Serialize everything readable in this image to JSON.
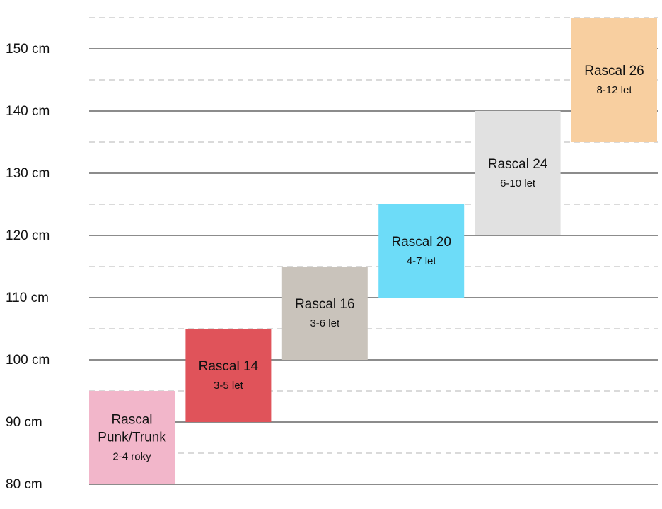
{
  "chart_data": {
    "type": "bar",
    "orientation": "floating-range",
    "ylim": [
      80,
      155
    ],
    "y_ticks": [
      80,
      90,
      100,
      110,
      120,
      130,
      140,
      150
    ],
    "y_tick_labels": [
      "80 cm",
      "90 cm",
      "100 cm",
      "110 cm",
      "120 cm",
      "130 cm",
      "140 cm",
      "150 cm"
    ],
    "grid": "solid lines at 10 cm, dashed lines at 5 cm",
    "bars": [
      {
        "title_lines": [
          "Rascal",
          "Punk/Trunk"
        ],
        "age": "2-4 roky",
        "min": 80,
        "max": 95,
        "color": "#f2b6ca"
      },
      {
        "title_lines": [
          "Rascal 14"
        ],
        "age": "3-5 let",
        "min": 90,
        "max": 105,
        "color": "#e0535a"
      },
      {
        "title_lines": [
          "Rascal 16"
        ],
        "age": "3-6 let",
        "min": 100,
        "max": 115,
        "color": "#c9c3bb"
      },
      {
        "title_lines": [
          "Rascal 20"
        ],
        "age": "4-7 let",
        "min": 110,
        "max": 125,
        "color": "#6ddcf8"
      },
      {
        "title_lines": [
          "Rascal 24"
        ],
        "age": "6-10 let",
        "min": 120,
        "max": 140,
        "color": "#e1e1e1"
      },
      {
        "title_lines": [
          "Rascal 26"
        ],
        "age": "8-12 let",
        "min": 135,
        "max": 155,
        "color": "#f8cfa0"
      }
    ]
  }
}
